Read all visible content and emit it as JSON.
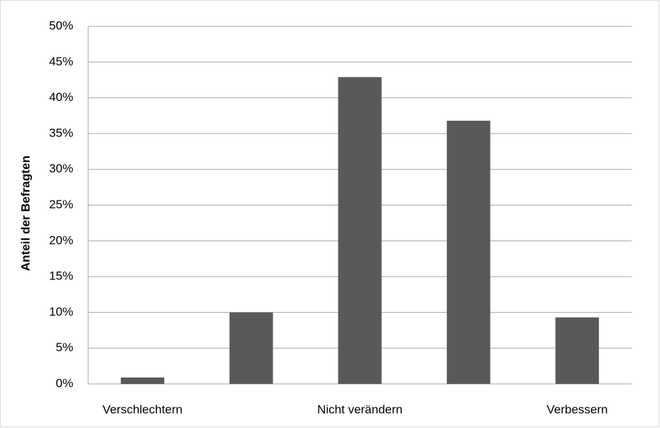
{
  "chart_data": {
    "type": "bar",
    "y_label": "Anteil der Befragten",
    "categories": [
      "Verschlechtern",
      null,
      "Nicht verändern",
      null,
      "Verbessern"
    ],
    "values": [
      0.9,
      10,
      42.9,
      36.8,
      9.3
    ],
    "color": "#595959",
    "ylim": [
      0,
      50
    ],
    "yticks": [
      {
        "value": 0,
        "label": "0%"
      },
      {
        "value": 5,
        "label": "5%"
      },
      {
        "value": 10,
        "label": "10%"
      },
      {
        "value": 15,
        "label": "15%"
      },
      {
        "value": 20,
        "label": "20%"
      },
      {
        "value": 25,
        "label": "25%"
      },
      {
        "value": 30,
        "label": "30%"
      },
      {
        "value": 35,
        "label": "35%"
      },
      {
        "value": 40,
        "label": "40%"
      },
      {
        "value": 45,
        "label": "45%"
      },
      {
        "value": 50,
        "label": "50%"
      }
    ],
    "grid": true
  }
}
